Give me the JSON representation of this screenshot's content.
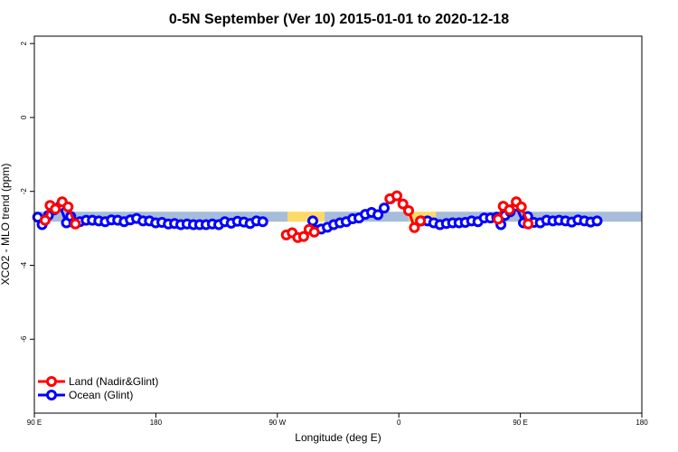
{
  "chart_data": {
    "type": "line",
    "title": "0-5N September (Ver 10)   2015-01-01 to 2020-12-18",
    "xlabel": "Longitude (deg E)",
    "ylabel": "XCO2 - MLO trend (ppm)",
    "xlim": [
      90,
      450
    ],
    "ylim": [
      -8,
      2.2
    ],
    "x_ticks": [
      {
        "value": 90,
        "label": "90 E"
      },
      {
        "value": 162,
        "label": "180"
      },
      {
        "value": 234,
        "label": "90 W"
      },
      {
        "value": 306,
        "label": "0"
      },
      {
        "value": 378,
        "label": "90 E"
      },
      {
        "value": 450,
        "label": "180"
      }
    ],
    "y_ticks": [
      2,
      0,
      -2,
      -4,
      -6
    ],
    "legend": {
      "position": "bottom-left",
      "entries": [
        "Land (Nadir&Glint)",
        "Ocean (Glint)"
      ]
    },
    "colors": {
      "land": "#ff0000",
      "ocean": "#0000ff",
      "land_band": "#ffd966",
      "ocean_band": "#a6bcd9"
    },
    "bands": [
      {
        "series": "ocean",
        "x_start": 90,
        "x_end": 240,
        "y_low": -2.82,
        "y_high": -2.55
      },
      {
        "series": "land",
        "x_start": 240,
        "x_end": 262,
        "y_low": -2.82,
        "y_high": -2.55
      },
      {
        "series": "ocean",
        "x_start": 262,
        "x_end": 312,
        "y_low": -2.82,
        "y_high": -2.55
      },
      {
        "series": "land",
        "x_start": 312,
        "x_end": 328,
        "y_low": -2.82,
        "y_high": -2.55
      },
      {
        "series": "ocean",
        "x_start": 328,
        "x_end": 450,
        "y_low": -2.82,
        "y_high": -2.55
      }
    ],
    "series": [
      {
        "name": "Ocean (Glint)",
        "color": "#0000ff",
        "segments": [
          [
            [
              92,
              -2.7
            ],
            [
              94.6,
              -2.9
            ],
            [
              98.3,
              -2.65
            ],
            [
              101.8,
              -2.5
            ],
            [
              105.2,
              -2.4
            ],
            [
              109,
              -2.85
            ],
            [
              111.6,
              -2.68
            ],
            [
              113.4,
              -2.85
            ],
            [
              117,
              -2.82
            ],
            [
              120.7,
              -2.78
            ],
            [
              124.4,
              -2.78
            ],
            [
              128.2,
              -2.8
            ],
            [
              132,
              -2.82
            ],
            [
              135.7,
              -2.77
            ],
            [
              139.4,
              -2.78
            ],
            [
              143.2,
              -2.82
            ],
            [
              146.9,
              -2.77
            ],
            [
              150.6,
              -2.73
            ],
            [
              154.4,
              -2.8
            ],
            [
              158.2,
              -2.8
            ],
            [
              161.9,
              -2.85
            ],
            [
              165.6,
              -2.84
            ],
            [
              169.4,
              -2.88
            ],
            [
              173.1,
              -2.87
            ],
            [
              176.8,
              -2.9
            ],
            [
              180.5,
              -2.88
            ],
            [
              184.3,
              -2.9
            ],
            [
              188,
              -2.9
            ],
            [
              191.8,
              -2.9
            ],
            [
              195.5,
              -2.88
            ],
            [
              199.3,
              -2.9
            ],
            [
              202.9,
              -2.82
            ],
            [
              206.7,
              -2.86
            ],
            [
              210.4,
              -2.81
            ],
            [
              214.2,
              -2.83
            ],
            [
              217.9,
              -2.87
            ],
            [
              221.6,
              -2.8
            ],
            [
              225.4,
              -2.82
            ]
          ],
          [
            [
              255,
              -2.8
            ],
            [
              256.6,
              -3.05
            ],
            [
              260,
              -3.02
            ],
            [
              263.6,
              -2.97
            ],
            [
              267.4,
              -2.9
            ],
            [
              271.1,
              -2.85
            ],
            [
              274.8,
              -2.82
            ],
            [
              278.6,
              -2.74
            ],
            [
              282.4,
              -2.72
            ],
            [
              286.1,
              -2.62
            ],
            [
              289.8,
              -2.57
            ],
            [
              293.6,
              -2.63
            ],
            [
              297.3,
              -2.45
            ],
            [
              301,
              -2.2
            ]
          ],
          [
            [
              319.2,
              -2.8
            ],
            [
              323,
              -2.8
            ],
            [
              326.7,
              -2.85
            ],
            [
              330.4,
              -2.9
            ],
            [
              334.2,
              -2.87
            ],
            [
              337.9,
              -2.85
            ],
            [
              341.7,
              -2.85
            ],
            [
              345.4,
              -2.84
            ],
            [
              349.1,
              -2.8
            ],
            [
              352.9,
              -2.82
            ],
            [
              356.6,
              -2.72
            ],
            [
              360.3,
              -2.72
            ],
            [
              364,
              -2.7
            ],
            [
              366.5,
              -2.9
            ],
            [
              368.9,
              -2.65
            ],
            [
              372,
              -2.55
            ],
            [
              375.5,
              -2.4
            ],
            [
              379.8,
              -2.85
            ],
            [
              382.4,
              -2.68
            ],
            [
              386.1,
              -2.84
            ],
            [
              389.8,
              -2.85
            ],
            [
              393.6,
              -2.78
            ],
            [
              397.3,
              -2.8
            ],
            [
              401,
              -2.78
            ],
            [
              404.8,
              -2.8
            ],
            [
              408.5,
              -2.83
            ],
            [
              412.2,
              -2.77
            ],
            [
              416,
              -2.8
            ],
            [
              419.7,
              -2.83
            ],
            [
              423.5,
              -2.8
            ]
          ]
        ]
      },
      {
        "name": "Land (Nadir&Glint)",
        "color": "#ff0000",
        "segments": [
          [
            [
              96.4,
              -2.78
            ],
            [
              99.3,
              -2.38
            ],
            [
              102.5,
              -2.48
            ],
            [
              106.5,
              -2.28
            ],
            [
              110,
              -2.42
            ],
            [
              114.3,
              -2.88
            ]
          ],
          [
            [
              239.3,
              -3.18
            ],
            [
              242.8,
              -3.12
            ],
            [
              246.1,
              -3.25
            ],
            [
              249.6,
              -3.22
            ],
            [
              252.8,
              -3.03
            ],
            [
              255.9,
              -3.1
            ]
          ],
          [
            [
              300.7,
              -2.2
            ],
            [
              304.8,
              -2.12
            ],
            [
              308.4,
              -2.34
            ],
            [
              311.8,
              -2.52
            ],
            [
              315.2,
              -2.98
            ],
            [
              318.8,
              -2.8
            ]
          ],
          [
            [
              364.8,
              -2.75
            ],
            [
              367.9,
              -2.4
            ],
            [
              371.5,
              -2.5
            ],
            [
              375.6,
              -2.28
            ],
            [
              378.6,
              -2.42
            ],
            [
              382.6,
              -2.88
            ]
          ]
        ]
      }
    ]
  }
}
